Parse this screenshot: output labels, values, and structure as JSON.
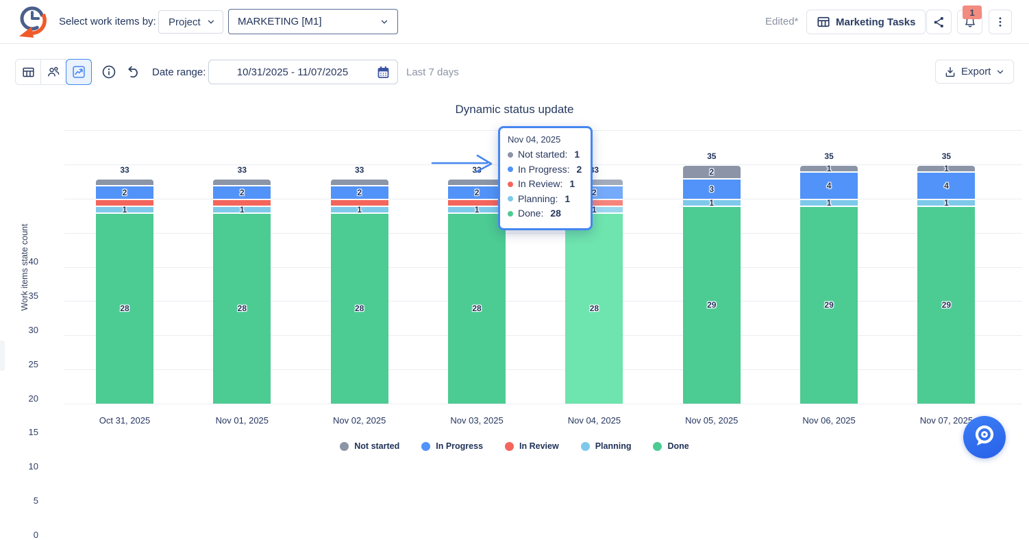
{
  "header": {
    "select_by_label": "Select work items by:",
    "project_dropdown_value": "Project",
    "board_select_value": "MARKETING [M1]",
    "edited_indicator": "Edited*",
    "board_button_label": "Marketing Tasks",
    "notification_badge": "1"
  },
  "toolbar": {
    "date_range_label": "Date range:",
    "date_range_value": "10/31/2025 - 11/07/2025",
    "date_range_hint": "Last 7 days",
    "export_label": "Export"
  },
  "chart_data": {
    "type": "bar",
    "stacked": true,
    "title": "Dynamic status update",
    "ylabel": "Work items state count",
    "ylim": [
      0,
      40
    ],
    "ytick_step": 5,
    "grid": true,
    "legend_position": "bottom",
    "categories": [
      "Oct 31, 2025",
      "Nov 01, 2025",
      "Nov 02, 2025",
      "Nov 03, 2025",
      "Nov 04, 2025",
      "Nov 05, 2025",
      "Nov 06, 2025",
      "Nov 07, 2025"
    ],
    "series": [
      {
        "name": "Done",
        "color": "#4ccb93",
        "highlight_color": "#6ee4ae",
        "values": [
          28,
          28,
          28,
          28,
          28,
          29,
          29,
          29
        ],
        "labels": [
          "28",
          "28",
          "28",
          "28",
          "28",
          "29",
          "29",
          "29"
        ]
      },
      {
        "name": "Planning",
        "color": "#7ec9ea",
        "highlight_color": "#9bd6ef",
        "values": [
          1,
          1,
          1,
          1,
          1,
          1,
          1,
          1
        ],
        "labels": [
          "1",
          "1",
          "1",
          "1",
          "1",
          "1",
          "1",
          "1"
        ]
      },
      {
        "name": "In Review",
        "color": "#f4655c",
        "highlight_color": "#f6847c",
        "values": [
          1,
          1,
          1,
          1,
          1,
          0,
          0,
          0
        ],
        "labels": [
          "",
          "",
          "",
          "",
          "",
          "",
          "",
          ""
        ]
      },
      {
        "name": "In Progress",
        "color": "#5193f8",
        "highlight_color": "#74aaf9",
        "values": [
          2,
          2,
          2,
          2,
          2,
          3,
          4,
          4
        ],
        "labels": [
          "2",
          "2",
          "2",
          "2",
          "2",
          "3",
          "4",
          "4"
        ]
      },
      {
        "name": "Not started",
        "color": "#8b95a7",
        "highlight_color": "#a2abba",
        "values": [
          1,
          1,
          1,
          1,
          1,
          2,
          1,
          1
        ],
        "labels": [
          "",
          "",
          "",
          "",
          "",
          "2",
          "1",
          "1"
        ]
      }
    ],
    "totals": [
      "33",
      "33",
      "33",
      "33",
      "33",
      "35",
      "35",
      "35"
    ],
    "highlighted_index": 4,
    "legend": [
      {
        "name": "Not started",
        "color": "#8b95a7"
      },
      {
        "name": "In Progress",
        "color": "#5193f8"
      },
      {
        "name": "In Review",
        "color": "#f4655c"
      },
      {
        "name": "Planning",
        "color": "#7ec9ea"
      },
      {
        "name": "Done",
        "color": "#4ccb93"
      }
    ]
  },
  "tooltip": {
    "title": "Nov 04, 2025",
    "rows": [
      {
        "label": "Not started",
        "value": "1",
        "color": "#8b95a7"
      },
      {
        "label": "In Progress",
        "value": "2",
        "color": "#5193f8"
      },
      {
        "label": "In Review",
        "value": "1",
        "color": "#f4655c"
      },
      {
        "label": "Planning",
        "value": "1",
        "color": "#7ec9ea"
      },
      {
        "label": "Done",
        "value": "28",
        "color": "#4ccb93"
      }
    ]
  }
}
